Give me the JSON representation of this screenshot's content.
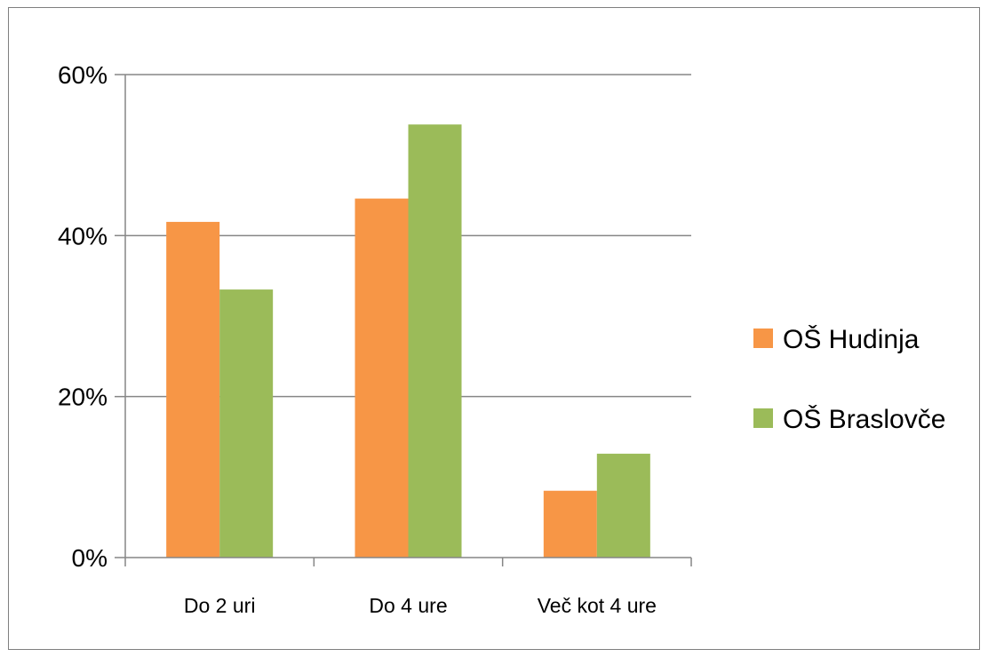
{
  "chart_data": {
    "type": "bar",
    "categories": [
      "Do 2 uri",
      "Do 4 ure",
      "Več kot 4 ure"
    ],
    "series": [
      {
        "name": "OŠ Hudinja",
        "color": "#F79646",
        "values": [
          41.7,
          44.6,
          8.3
        ]
      },
      {
        "name": "OŠ Braslovče",
        "color": "#9BBB59",
        "values": [
          33.3,
          53.8,
          12.9
        ]
      }
    ],
    "ylim": [
      0,
      60
    ],
    "yticks": [
      0,
      20,
      40,
      60
    ],
    "ytick_labels": [
      "0%",
      "20%",
      "40%",
      "60%"
    ],
    "grid": true,
    "legend_position": "right",
    "title": "",
    "xlabel": "",
    "ylabel": ""
  }
}
